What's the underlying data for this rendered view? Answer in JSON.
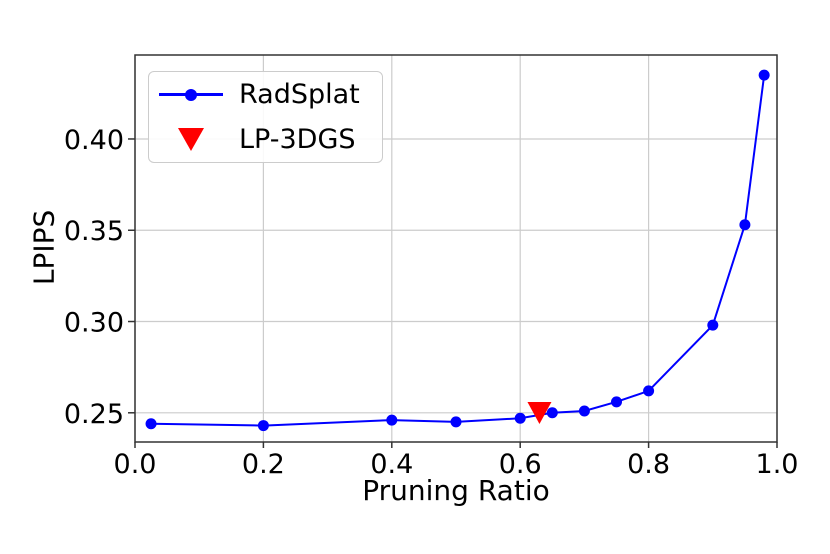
{
  "chart_data": {
    "type": "line",
    "title": "",
    "xlabel": "Pruning Ratio",
    "ylabel": "LPIPS",
    "xlim": [
      0.0,
      1.0
    ],
    "ylim": [
      0.234,
      0.446
    ],
    "x_ticks": [
      0.0,
      0.2,
      0.4,
      0.6,
      0.8,
      1.0
    ],
    "x_tick_labels": [
      "0.0",
      "0.2",
      "0.4",
      "0.6",
      "0.8",
      "1.0"
    ],
    "y_ticks": [
      0.25,
      0.3,
      0.35,
      0.4
    ],
    "y_tick_labels": [
      "0.25",
      "0.30",
      "0.35",
      "0.40"
    ],
    "grid": true,
    "legend_position": "upper-left",
    "series": [
      {
        "name": "RadSplat",
        "type": "line",
        "color": "#0000ff",
        "marker": "circle",
        "x": [
          0.025,
          0.2,
          0.4,
          0.5,
          0.6,
          0.65,
          0.7,
          0.75,
          0.8,
          0.9,
          0.95,
          0.98
        ],
        "y": [
          0.244,
          0.243,
          0.246,
          0.245,
          0.247,
          0.25,
          0.251,
          0.256,
          0.262,
          0.298,
          0.353,
          0.435
        ]
      },
      {
        "name": "LP-3DGS",
        "type": "scatter",
        "color": "#ff0000",
        "marker": "triangle-down",
        "x": [
          0.63
        ],
        "y": [
          0.251
        ]
      }
    ],
    "colors": {
      "grid": "#cccccc",
      "spine": "#333333",
      "text": "#000000",
      "background": "#ffffff"
    }
  }
}
